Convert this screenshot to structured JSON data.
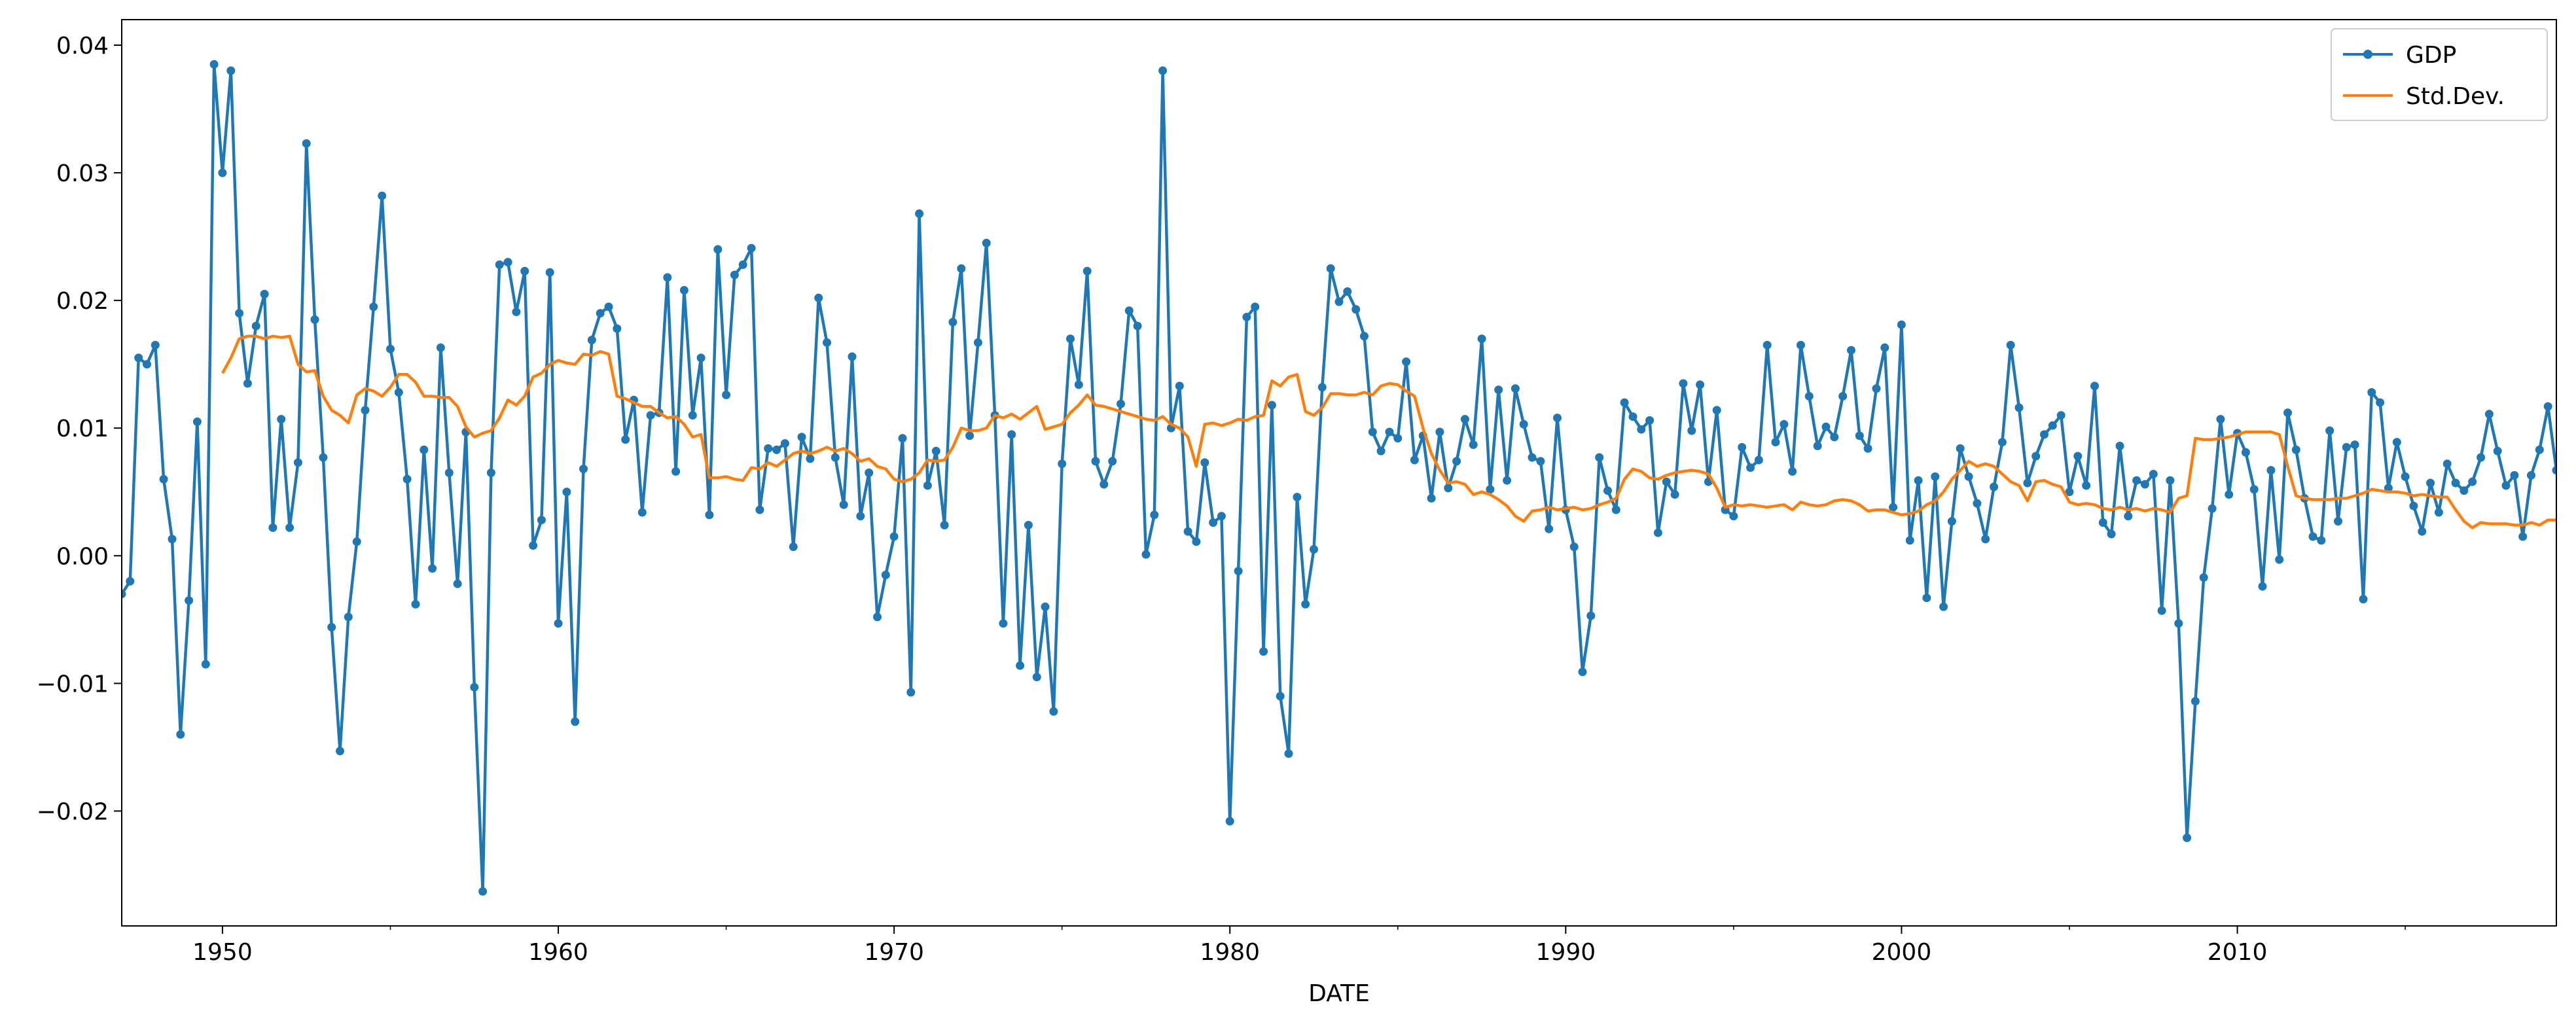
{
  "chart_data": {
    "type": "line",
    "title": "",
    "xlabel": "DATE",
    "ylabel": "",
    "xlim": [
      1947.0,
      2019.5
    ],
    "ylim": [
      -0.029,
      0.042
    ],
    "x_ticks": [
      1950,
      1960,
      1970,
      1980,
      1990,
      2000,
      2010
    ],
    "x_tick_labels": [
      "1950",
      "1960",
      "1970",
      "1980",
      "1990",
      "2000",
      "2010"
    ],
    "y_ticks": [
      -0.02,
      -0.01,
      0.0,
      0.01,
      0.02,
      0.03,
      0.04
    ],
    "y_tick_labels": [
      "−0.02",
      "−0.01",
      "0.00",
      "0.01",
      "0.02",
      "0.03",
      "0.04"
    ],
    "grid": false,
    "legend_position": "top-right",
    "series": [
      {
        "name": "GDP",
        "color": "#1f77b4",
        "marker": "dot",
        "x_start": 1947.0,
        "x_step": 0.25,
        "values": [
          -0.003,
          -0.002,
          0.0155,
          0.015,
          0.0165,
          0.006,
          0.0013,
          -0.014,
          -0.0035,
          0.0105,
          -0.0085,
          0.0385,
          0.03,
          0.038,
          0.019,
          0.0135,
          0.018,
          0.0205,
          0.0022,
          0.0107,
          0.0022,
          0.0073,
          0.0323,
          0.0185,
          0.0077,
          -0.0056,
          -0.0153,
          -0.0048,
          0.0011,
          0.0114,
          0.0195,
          0.0282,
          0.0162,
          0.0128,
          0.006,
          -0.0038,
          0.0083,
          -0.001,
          0.0163,
          0.0065,
          -0.0022,
          0.0097,
          -0.0103,
          -0.0263,
          0.0065,
          0.0228,
          0.023,
          0.0191,
          0.0223,
          0.0008,
          0.0028,
          0.0222,
          -0.0053,
          0.005,
          -0.013,
          0.0068,
          0.0169,
          0.019,
          0.0195,
          0.0178,
          0.0091,
          0.0122,
          0.0034,
          0.011,
          0.0112,
          0.0218,
          0.0066,
          0.0208,
          0.011,
          0.0155,
          0.0032,
          0.024,
          0.0126,
          0.022,
          0.0228,
          0.0241,
          0.0036,
          0.0084,
          0.0083,
          0.0088,
          0.0007,
          0.0093,
          0.0076,
          0.0202,
          0.0167,
          0.0077,
          0.004,
          0.0156,
          0.0031,
          0.0065,
          -0.0048,
          -0.0015,
          0.0015,
          0.0092,
          -0.0107,
          0.0268,
          0.0055,
          0.0082,
          0.0024,
          0.0183,
          0.0225,
          0.0094,
          0.0167,
          0.0245,
          0.011,
          -0.0053,
          0.0095,
          -0.0086,
          0.0024,
          -0.0095,
          -0.004,
          -0.0122,
          0.0072,
          0.017,
          0.0134,
          0.0223,
          0.0074,
          0.0056,
          0.0074,
          0.0119,
          0.0192,
          0.018,
          0.0001,
          0.0032,
          0.038,
          0.01,
          0.0133,
          0.0019,
          0.0011,
          0.0073,
          0.0026,
          0.0031,
          -0.0208,
          -0.0012,
          0.0187,
          0.0195,
          -0.0075,
          0.0118,
          -0.011,
          -0.0155,
          0.0046,
          -0.0038,
          0.0005,
          0.0132,
          0.0225,
          0.0199,
          0.0207,
          0.0193,
          0.0172,
          0.0097,
          0.0082,
          0.0097,
          0.0092,
          0.0152,
          0.0075,
          0.0094,
          0.0045,
          0.0097,
          0.0053,
          0.0074,
          0.0107,
          0.0087,
          0.017,
          0.0052,
          0.013,
          0.0059,
          0.0131,
          0.0103,
          0.0077,
          0.0074,
          0.0021,
          0.0108,
          0.0036,
          0.0007,
          -0.0091,
          -0.0047,
          0.0077,
          0.0051,
          0.0036,
          0.012,
          0.0109,
          0.0099,
          0.0106,
          0.0018,
          0.0058,
          0.0048,
          0.0135,
          0.0098,
          0.0134,
          0.0058,
          0.0114,
          0.0036,
          0.0031,
          0.0085,
          0.0069,
          0.0075,
          0.0165,
          0.0089,
          0.0103,
          0.0066,
          0.0165,
          0.0125,
          0.0086,
          0.0101,
          0.0093,
          0.0125,
          0.0161,
          0.0094,
          0.0084,
          0.0131,
          0.0163,
          0.0038,
          0.0181,
          0.0012,
          0.0059,
          -0.0033,
          0.0062,
          -0.004,
          0.0027,
          0.0084,
          0.0062,
          0.0041,
          0.0013,
          0.0054,
          0.0089,
          0.0165,
          0.0116,
          0.0057,
          0.0078,
          0.0095,
          0.0102,
          0.011,
          0.005,
          0.0078,
          0.0055,
          0.0133,
          0.0026,
          0.0017,
          0.0086,
          0.0031,
          0.0059,
          0.0056,
          0.0064,
          -0.0043,
          0.0059,
          -0.0053,
          -0.0221,
          -0.0114,
          -0.0017,
          0.0037,
          0.0107,
          0.0048,
          0.0096,
          0.0081,
          0.0052,
          -0.0024,
          0.0067,
          -0.0003,
          0.0112,
          0.0083,
          0.0045,
          0.0015,
          0.0012,
          0.0098,
          0.0027,
          0.0085,
          0.0087,
          -0.0034,
          0.0128,
          0.012,
          0.0053,
          0.0089,
          0.0062,
          0.0039,
          0.0019,
          0.0057,
          0.0034,
          0.0072,
          0.0057,
          0.0051,
          0.0058,
          0.0077,
          0.0111,
          0.0082,
          0.0055,
          0.0063,
          0.0015,
          0.0063,
          0.0083,
          0.0117,
          0.0067
        ]
      },
      {
        "name": "Std.Dev.",
        "color": "#ff7f0e",
        "marker": "none",
        "x_start": 1950.0,
        "x_step": 0.25,
        "values": [
          0.0143,
          0.0155,
          0.017,
          0.0172,
          0.0172,
          0.017,
          0.0172,
          0.0171,
          0.0172,
          0.015,
          0.0144,
          0.0145,
          0.0125,
          0.0114,
          0.011,
          0.0104,
          0.0126,
          0.0131,
          0.0129,
          0.0125,
          0.0132,
          0.0142,
          0.0142,
          0.0136,
          0.0125,
          0.0125,
          0.0124,
          0.0124,
          0.0117,
          0.0101,
          0.0093,
          0.0096,
          0.0098,
          0.0108,
          0.0122,
          0.0118,
          0.0125,
          0.014,
          0.0143,
          0.015,
          0.0153,
          0.0151,
          0.015,
          0.0158,
          0.0157,
          0.016,
          0.0158,
          0.0125,
          0.0123,
          0.012,
          0.0117,
          0.0117,
          0.0112,
          0.0108,
          0.0109,
          0.0103,
          0.0093,
          0.0095,
          0.0061,
          0.0061,
          0.0062,
          0.006,
          0.0059,
          0.0069,
          0.0068,
          0.0073,
          0.007,
          0.0075,
          0.008,
          0.0082,
          0.008,
          0.0082,
          0.0085,
          0.0082,
          0.0084,
          0.008,
          0.0074,
          0.0076,
          0.007,
          0.0068,
          0.006,
          0.0058,
          0.006,
          0.0065,
          0.0075,
          0.0074,
          0.0075,
          0.0085,
          0.01,
          0.0098,
          0.0098,
          0.01,
          0.011,
          0.0108,
          0.0111,
          0.0107,
          0.0112,
          0.0117,
          0.0099,
          0.0101,
          0.0103,
          0.0112,
          0.0118,
          0.0126,
          0.0118,
          0.0117,
          0.0115,
          0.0113,
          0.0111,
          0.0109,
          0.0107,
          0.0106,
          0.0109,
          0.0103,
          0.01,
          0.0093,
          0.007,
          0.0103,
          0.0104,
          0.0102,
          0.0104,
          0.0107,
          0.0106,
          0.0109,
          0.011,
          0.0137,
          0.0133,
          0.014,
          0.0142,
          0.0113,
          0.011,
          0.0116,
          0.0127,
          0.0127,
          0.0126,
          0.0126,
          0.0128,
          0.0126,
          0.0133,
          0.0135,
          0.0134,
          0.0129,
          0.0125,
          0.01,
          0.008,
          0.0067,
          0.0057,
          0.0058,
          0.0056,
          0.0048,
          0.005,
          0.0048,
          0.0044,
          0.0039,
          0.0031,
          0.0027,
          0.0035,
          0.0036,
          0.0038,
          0.0036,
          0.0037,
          0.0038,
          0.0036,
          0.0037,
          0.004,
          0.0042,
          0.0045,
          0.006,
          0.0068,
          0.0066,
          0.0061,
          0.006,
          0.0063,
          0.0065,
          0.0066,
          0.0067,
          0.0066,
          0.0064,
          0.0053,
          0.0038,
          0.004,
          0.0039,
          0.004,
          0.0039,
          0.0038,
          0.0039,
          0.004,
          0.0036,
          0.0042,
          0.004,
          0.0039,
          0.004,
          0.0043,
          0.0044,
          0.0043,
          0.004,
          0.0035,
          0.0036,
          0.0036,
          0.0034,
          0.0032,
          0.0033,
          0.0035,
          0.004,
          0.0043,
          0.005,
          0.006,
          0.0067,
          0.0074,
          0.007,
          0.0072,
          0.007,
          0.0064,
          0.0058,
          0.0055,
          0.0043,
          0.0058,
          0.0059,
          0.0056,
          0.0054,
          0.0042,
          0.004,
          0.0041,
          0.004,
          0.0037,
          0.0036,
          0.0038,
          0.0036,
          0.0037,
          0.0035,
          0.0037,
          0.0036,
          0.0034,
          0.0045,
          0.0047,
          0.0092,
          0.0091,
          0.0091,
          0.0092,
          0.0093,
          0.0095,
          0.0097,
          0.0097,
          0.0097,
          0.0097,
          0.0095,
          0.007,
          0.0047,
          0.0045,
          0.0044,
          0.0044,
          0.0044,
          0.0045,
          0.0045,
          0.0047,
          0.0049,
          0.0052,
          0.0051,
          0.005,
          0.005,
          0.0049,
          0.0047,
          0.0048,
          0.0047,
          0.0046,
          0.0046,
          0.0036,
          0.0027,
          0.0022,
          0.0026,
          0.0025,
          0.0025,
          0.0025,
          0.0024,
          0.0024,
          0.0026,
          0.0024,
          0.0028,
          0.0028
        ]
      }
    ]
  }
}
